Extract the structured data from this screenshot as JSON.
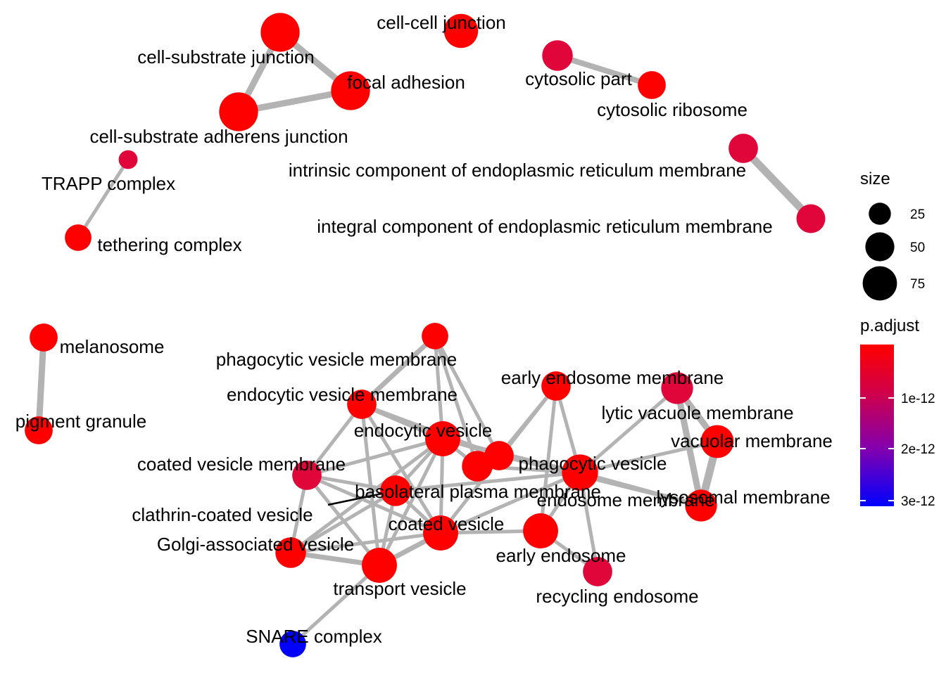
{
  "network": {
    "nodes": [
      {
        "id": "cell-cell-junction",
        "label": "cell-cell junction",
        "size": 60,
        "p_adjust": "red"
      },
      {
        "id": "cell-substrate-junction",
        "label": "cell-substrate junction",
        "size": 85,
        "p_adjust": "red"
      },
      {
        "id": "focal-adhesion",
        "label": "focal adhesion",
        "size": 85,
        "p_adjust": "red"
      },
      {
        "id": "cell-substrate-adherens-junction",
        "label": "cell-substrate adherens junction",
        "size": 85,
        "p_adjust": "red"
      },
      {
        "id": "cytosolic-part",
        "label": "cytosolic part",
        "size": 45,
        "p_adjust": "crimson"
      },
      {
        "id": "cytosolic-ribosome",
        "label": "cytosolic ribosome",
        "size": 35,
        "p_adjust": "red"
      },
      {
        "id": "trapp-complex",
        "label": "TRAPP complex",
        "size": 10,
        "p_adjust": "crimson"
      },
      {
        "id": "tethering-complex",
        "label": "tethering complex",
        "size": 30,
        "p_adjust": "red"
      },
      {
        "id": "intrinsic-er-membrane",
        "label": "intrinsic component of endoplasmic reticulum membrane",
        "size": 40,
        "p_adjust": "crimson"
      },
      {
        "id": "integral-er-membrane",
        "label": "integral component of endoplasmic reticulum membrane",
        "size": 38,
        "p_adjust": "crimson"
      },
      {
        "id": "melanosome",
        "label": "melanosome",
        "size": 35,
        "p_adjust": "red"
      },
      {
        "id": "pigment-granule",
        "label": "pigment granule",
        "size": 35,
        "p_adjust": "red"
      },
      {
        "id": "phagocytic-vesicle-membrane",
        "label": "phagocytic vesicle membrane",
        "size": 30,
        "p_adjust": "red"
      },
      {
        "id": "endocytic-vesicle-membrane",
        "label": "endocytic vesicle membrane",
        "size": 40,
        "p_adjust": "red"
      },
      {
        "id": "early-endosome-membrane",
        "label": "early endosome membrane",
        "size": 40,
        "p_adjust": "red"
      },
      {
        "id": "lytic-vacuole-membrane",
        "label": "lytic vacuole membrane",
        "size": 50,
        "p_adjust": "crimson"
      },
      {
        "id": "vacuolar-membrane",
        "label": "vacuolar membrane",
        "size": 55,
        "p_adjust": "red"
      },
      {
        "id": "lysosomal-membrane",
        "label": "lysosomal membrane",
        "size": 50,
        "p_adjust": "red"
      },
      {
        "id": "endocytic-vesicle",
        "label": "endocytic vesicle",
        "size": 65,
        "p_adjust": "red"
      },
      {
        "id": "phagocytic-vesicle",
        "label": "phagocytic vesicle",
        "size": 40,
        "p_adjust": "red"
      },
      {
        "id": "basolateral-plasma-membrane",
        "label": "basolateral plasma membrane",
        "size": 45,
        "p_adjust": "red"
      },
      {
        "id": "endosome-membrane",
        "label": "endosome membrane",
        "size": 70,
        "p_adjust": "red"
      },
      {
        "id": "coated-vesicle-membrane",
        "label": "coated vesicle membrane",
        "size": 40,
        "p_adjust": "crimson"
      },
      {
        "id": "clathrin-coated-vesicle",
        "label": "clathrin-coated vesicle",
        "size": 45,
        "p_adjust": "red"
      },
      {
        "id": "coated-vesicle",
        "label": "coated vesicle",
        "size": 65,
        "p_adjust": "red"
      },
      {
        "id": "early-endosome",
        "label": "early endosome",
        "size": 65,
        "p_adjust": "red"
      },
      {
        "id": "golgi-associated-vesicle",
        "label": "Golgi-associated vesicle",
        "size": 45,
        "p_adjust": "red"
      },
      {
        "id": "transport-vesicle",
        "label": "transport vesicle",
        "size": 65,
        "p_adjust": "red"
      },
      {
        "id": "recycling-endosome",
        "label": "recycling endosome",
        "size": 40,
        "p_adjust": "crimson"
      },
      {
        "id": "snare-complex",
        "label": "SNARE complex",
        "size": 30,
        "p_adjust": "blue"
      }
    ],
    "edges": [
      [
        "cell-substrate-junction",
        "focal-adhesion",
        9
      ],
      [
        "cell-substrate-junction",
        "cell-substrate-adherens-junction",
        9
      ],
      [
        "focal-adhesion",
        "cell-substrate-adherens-junction",
        9
      ],
      [
        "cytosolic-part",
        "cytosolic-ribosome",
        8
      ],
      [
        "trapp-complex",
        "tethering-complex",
        5
      ],
      [
        "intrinsic-er-membrane",
        "integral-er-membrane",
        11
      ],
      [
        "melanosome",
        "pigment-granule",
        9
      ],
      [
        "phagocytic-vesicle-membrane",
        "endocytic-vesicle-membrane",
        7
      ],
      [
        "phagocytic-vesicle-membrane",
        "endocytic-vesicle",
        5
      ],
      [
        "phagocytic-vesicle-membrane",
        "phagocytic-vesicle",
        5
      ],
      [
        "phagocytic-vesicle-membrane",
        "basolateral-plasma-membrane",
        5
      ],
      [
        "endocytic-vesicle-membrane",
        "endocytic-vesicle",
        7
      ],
      [
        "endocytic-vesicle-membrane",
        "coated-vesicle-membrane",
        5
      ],
      [
        "endocytic-vesicle-membrane",
        "coated-vesicle",
        5
      ],
      [
        "endocytic-vesicle-membrane",
        "transport-vesicle",
        5
      ],
      [
        "endocytic-vesicle-membrane",
        "phagocytic-vesicle",
        5
      ],
      [
        "early-endosome-membrane",
        "endosome-membrane",
        5
      ],
      [
        "early-endosome-membrane",
        "early-endosome",
        5
      ],
      [
        "early-endosome-membrane",
        "phagocytic-vesicle",
        5
      ],
      [
        "early-endosome-membrane",
        "coated-vesicle",
        5
      ],
      [
        "lytic-vacuole-membrane",
        "vacuolar-membrane",
        9
      ],
      [
        "lytic-vacuole-membrane",
        "lysosomal-membrane",
        9
      ],
      [
        "vacuolar-membrane",
        "lysosomal-membrane",
        11
      ],
      [
        "lytic-vacuole-membrane",
        "endosome-membrane",
        5
      ],
      [
        "vacuolar-membrane",
        "endosome-membrane",
        5
      ],
      [
        "lysosomal-membrane",
        "endosome-membrane",
        5
      ],
      [
        "lysosomal-membrane",
        "phagocytic-vesicle",
        5
      ],
      [
        "endocytic-vesicle",
        "phagocytic-vesicle",
        5
      ],
      [
        "endocytic-vesicle",
        "basolateral-plasma-membrane",
        5
      ],
      [
        "endocytic-vesicle",
        "endosome-membrane",
        5
      ],
      [
        "endocytic-vesicle",
        "coated-vesicle-membrane",
        5
      ],
      [
        "endocytic-vesicle",
        "clathrin-coated-vesicle",
        5
      ],
      [
        "endocytic-vesicle",
        "coated-vesicle",
        5
      ],
      [
        "endocytic-vesicle",
        "transport-vesicle",
        5
      ],
      [
        "endocytic-vesicle",
        "golgi-associated-vesicle",
        5
      ],
      [
        "phagocytic-vesicle",
        "basolateral-plasma-membrane",
        5
      ],
      [
        "phagocytic-vesicle",
        "endosome-membrane",
        5
      ],
      [
        "basolateral-plasma-membrane",
        "endosome-membrane",
        5
      ],
      [
        "endosome-membrane",
        "early-endosome",
        5
      ],
      [
        "endosome-membrane",
        "coated-vesicle",
        5
      ],
      [
        "endosome-membrane",
        "clathrin-coated-vesicle",
        5
      ],
      [
        "endosome-membrane",
        "recycling-endosome",
        5
      ],
      [
        "early-endosome",
        "recycling-endosome",
        5
      ],
      [
        "early-endosome",
        "coated-vesicle",
        5
      ],
      [
        "coated-vesicle-membrane",
        "clathrin-coated-vesicle",
        5
      ],
      [
        "coated-vesicle-membrane",
        "coated-vesicle",
        5
      ],
      [
        "coated-vesicle-membrane",
        "transport-vesicle",
        5
      ],
      [
        "coated-vesicle-membrane",
        "golgi-associated-vesicle",
        5
      ],
      [
        "clathrin-coated-vesicle",
        "coated-vesicle",
        5
      ],
      [
        "clathrin-coated-vesicle",
        "transport-vesicle",
        5
      ],
      [
        "clathrin-coated-vesicle",
        "golgi-associated-vesicle",
        5
      ],
      [
        "coated-vesicle",
        "transport-vesicle",
        7
      ],
      [
        "coated-vesicle",
        "golgi-associated-vesicle",
        5
      ],
      [
        "golgi-associated-vesicle",
        "transport-vesicle",
        7
      ],
      [
        "transport-vesicle",
        "snare-complex",
        5
      ]
    ]
  },
  "legend": {
    "size_title": "size",
    "size_items": [
      {
        "label": "25",
        "value": 25
      },
      {
        "label": "50",
        "value": 50
      },
      {
        "label": "75",
        "value": 75
      }
    ],
    "color_title": "p.adjust",
    "color_ticks": [
      "1e-12",
      "2e-12",
      "3e-12"
    ],
    "gradient_colors": [
      "#ff0000",
      "#d0004a",
      "#8000b0",
      "#0000ff"
    ]
  },
  "colors": {
    "red": "#ff0000",
    "crimson": "#e0063a",
    "blue": "#0000ff",
    "edge": "#b3b3b3",
    "leader_line": "#000000"
  }
}
